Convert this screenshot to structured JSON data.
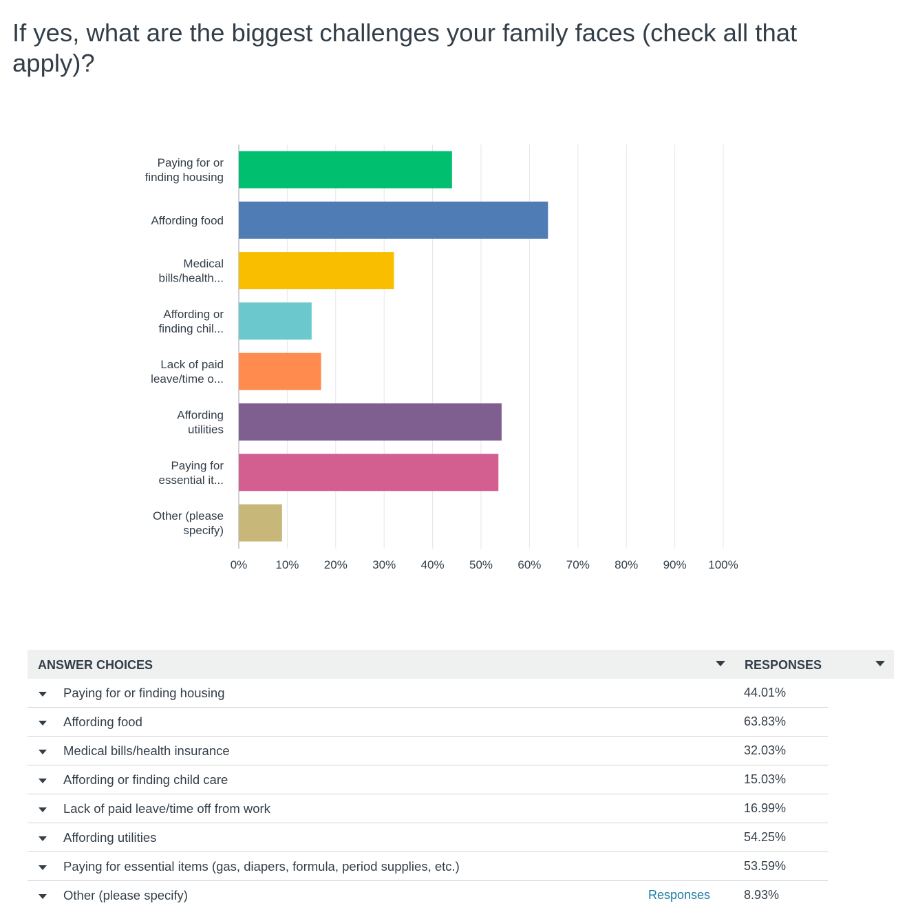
{
  "question_title": "If yes, what are the biggest challenges your family faces (check all that apply)?",
  "chart_data": {
    "type": "bar",
    "orientation": "horizontal",
    "title": "",
    "xlabel": "",
    "ylabel": "",
    "categories": [
      [
        "Paying for or",
        "finding housing"
      ],
      [
        "Affording food"
      ],
      [
        "Medical",
        "bills/health..."
      ],
      [
        "Affording or",
        "finding chil..."
      ],
      [
        "Lack of paid",
        "leave/time o..."
      ],
      [
        "Affording",
        "utilities"
      ],
      [
        "Paying for",
        "essential it..."
      ],
      [
        "Other (please",
        "specify)"
      ]
    ],
    "values": [
      44.01,
      63.83,
      32.03,
      15.03,
      16.99,
      54.25,
      53.59,
      8.93
    ],
    "colors": [
      "#00bf6f",
      "#507cb6",
      "#f9be00",
      "#6bc8cd",
      "#ff8b4f",
      "#7f5f90",
      "#d25f90",
      "#c7b879"
    ],
    "xlim": [
      0,
      100
    ],
    "x_ticks": [
      "0%",
      "10%",
      "20%",
      "30%",
      "40%",
      "50%",
      "60%",
      "70%",
      "80%",
      "90%",
      "100%"
    ],
    "grid": true,
    "legend": "none"
  },
  "table": {
    "header_answer": "ANSWER CHOICES",
    "header_responses": "RESPONSES",
    "rows": [
      {
        "answer": "Paying for or finding housing",
        "pct": "44.01%"
      },
      {
        "answer": "Affording food",
        "pct": "63.83%"
      },
      {
        "answer": "Medical bills/health insurance",
        "pct": "32.03%"
      },
      {
        "answer": "Affording or finding child care",
        "pct": "15.03%"
      },
      {
        "answer": "Lack of paid leave/time off from work",
        "pct": "16.99%"
      },
      {
        "answer": "Affording utilities",
        "pct": "54.25%"
      },
      {
        "answer": "Paying for essential items (gas, diapers, formula, period supplies, etc.)",
        "pct": "53.59%"
      },
      {
        "answer": "Other (please specify)",
        "pct": "8.93%",
        "link": "Responses"
      }
    ]
  },
  "icons": {
    "sort": "caret-down-icon",
    "expand": "caret-down-icon"
  }
}
